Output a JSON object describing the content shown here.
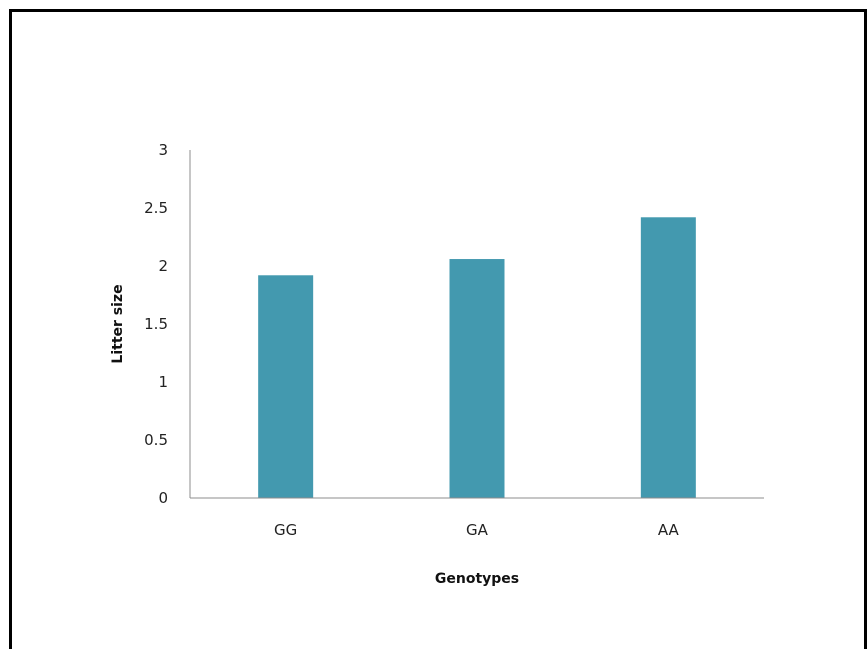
{
  "chart_data": {
    "type": "bar",
    "categories": [
      "GG",
      "GA",
      "AA"
    ],
    "values": [
      1.92,
      2.06,
      2.42
    ],
    "title": "",
    "xlabel": "Genotypes",
    "ylabel": "Litter size",
    "ylim": [
      0,
      3
    ],
    "yticks": [
      "0",
      "0.5",
      "1",
      "1.5",
      "2",
      "2.5",
      "3"
    ],
    "grid": false,
    "legend": "none",
    "bar_color": "#4399AF",
    "axis_color": "#8C8C8C"
  }
}
